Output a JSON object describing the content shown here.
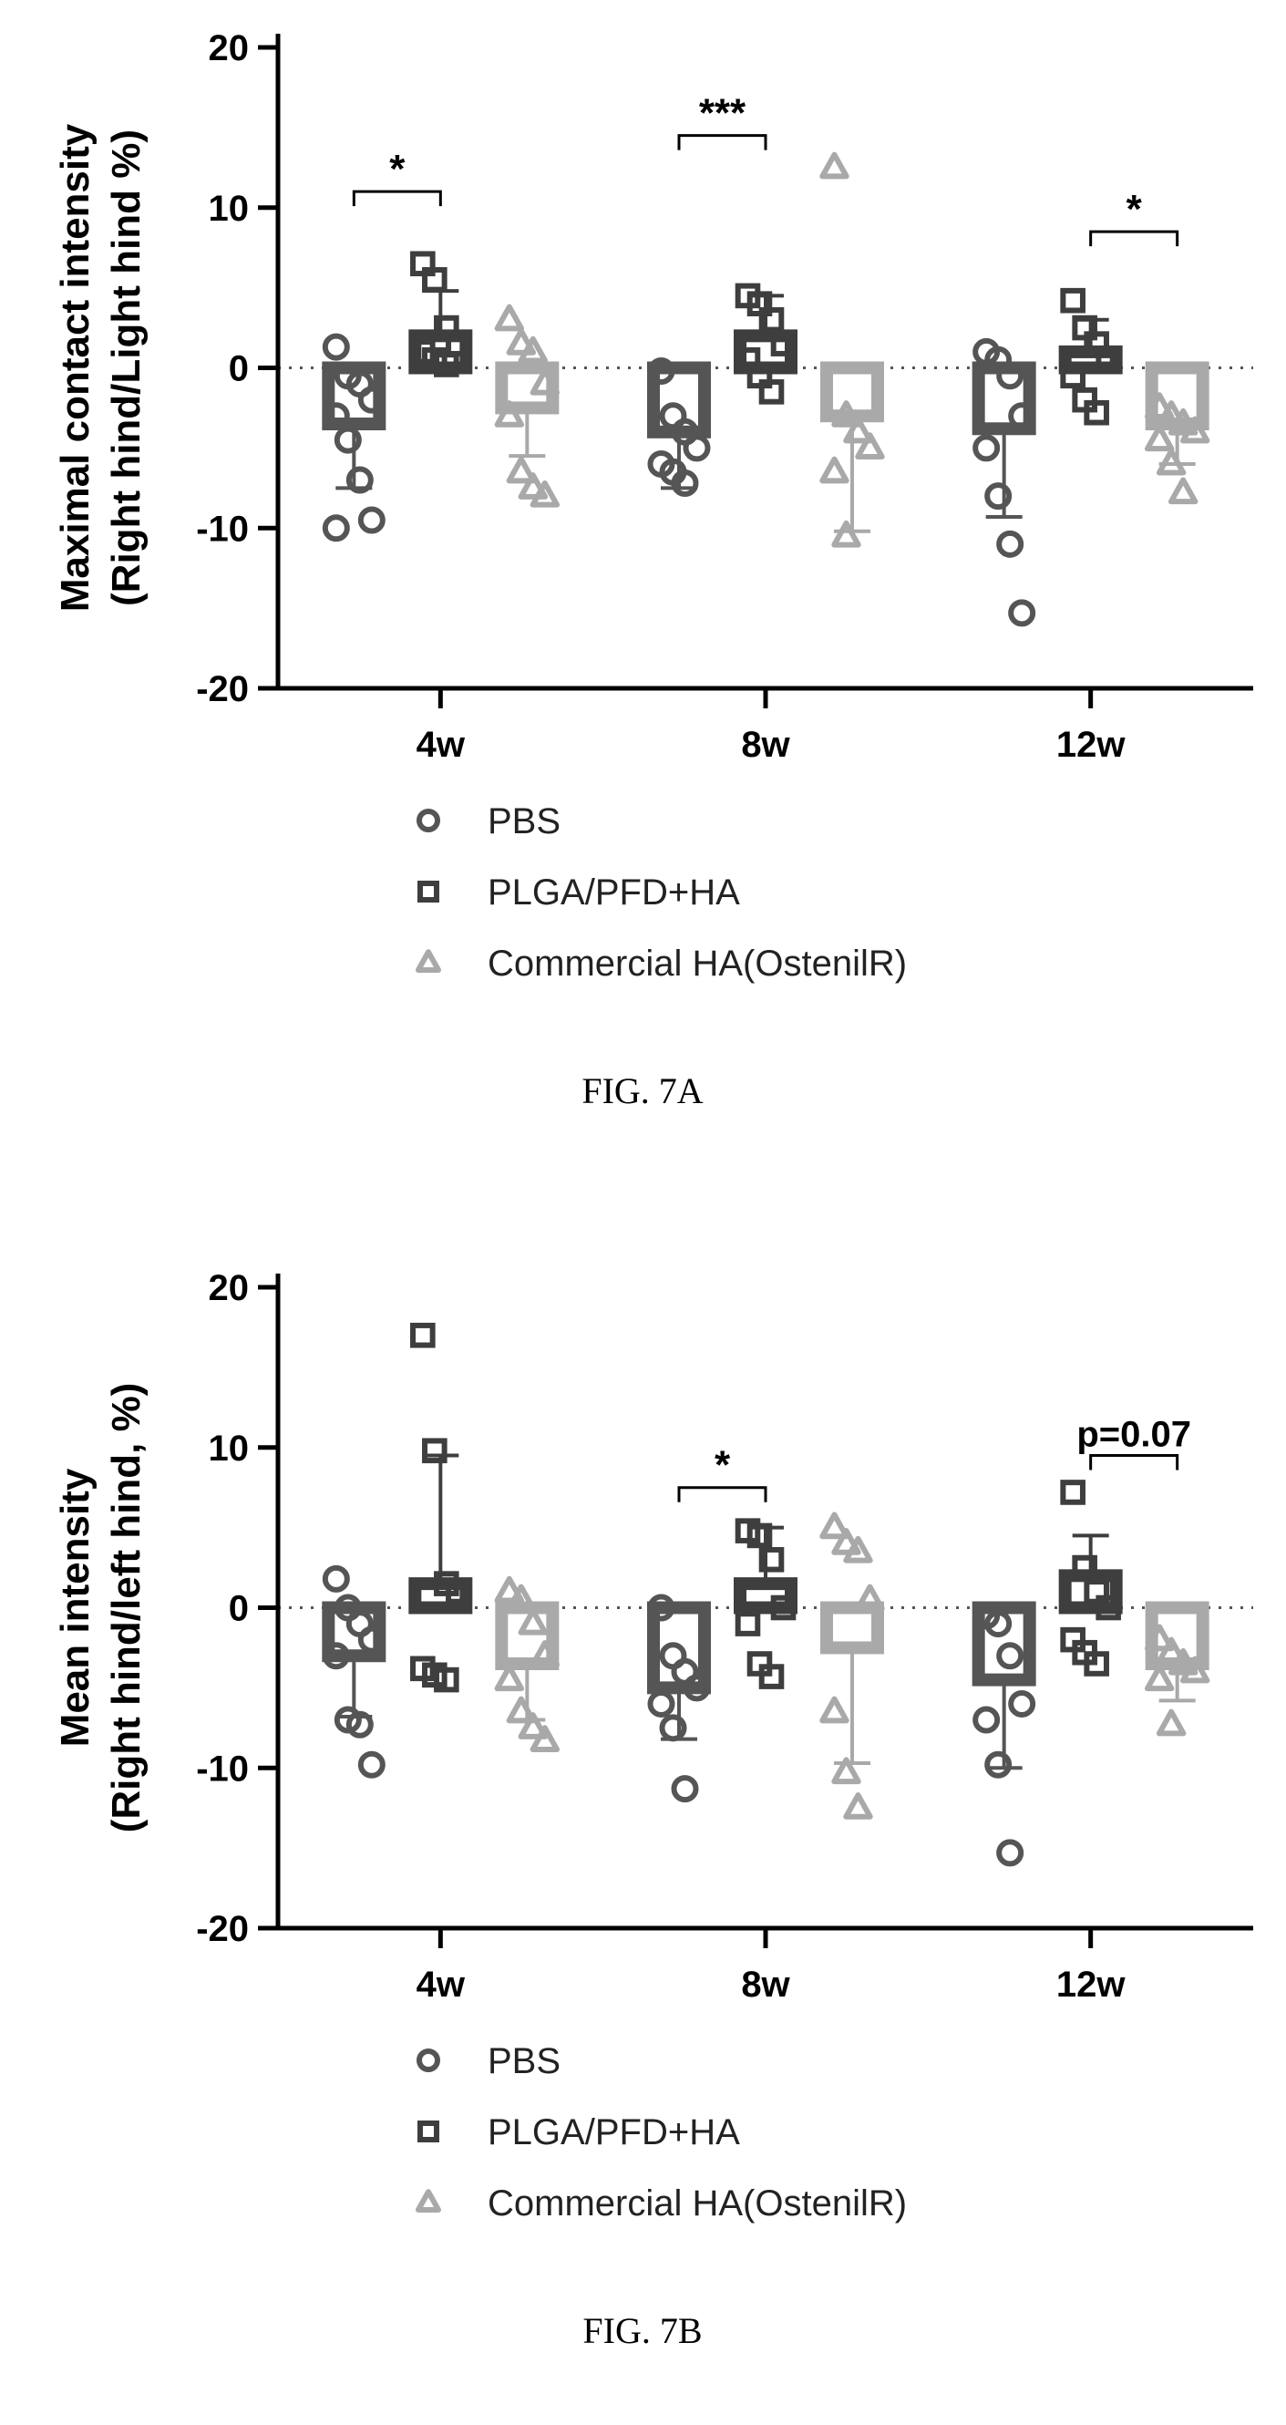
{
  "groups": {
    "names": [
      "PBS",
      "PLGA/PFD+HA",
      "Commercial HA(OstenilR)"
    ],
    "colors": [
      "#555555",
      "#3e3e3e",
      "#a9a9a9"
    ],
    "markers": [
      "circle",
      "square",
      "triangle"
    ]
  },
  "chart_data": [
    {
      "type": "bar",
      "caption": "FIG. 7A",
      "ylabel_line1": "Maximal contact intensity",
      "ylabel_line2": "(Right hind/Light hind %)",
      "categories": [
        "4w",
        "8w",
        "12w"
      ],
      "ylim": [
        -20,
        20
      ],
      "yticks": [
        -20,
        -10,
        0,
        10,
        20
      ],
      "ytick_labels": [
        "-20",
        "-10",
        "0",
        "10",
        "20"
      ],
      "reference_line": 0,
      "legend_position": "bottom",
      "series": [
        {
          "name": "PBS",
          "values": [
            -3.5,
            -4.0,
            -3.8
          ],
          "errors": [
            4.0,
            3.5,
            5.5
          ],
          "points": [
            [
              1.3,
              -0.5,
              -1.0,
              -2.0,
              -3.0,
              -4.5,
              -7.0,
              -9.5,
              -10.0
            ],
            [
              -0.2,
              -3.0,
              -4.0,
              -5.0,
              -6.0,
              -6.5,
              -7.2
            ],
            [
              1.0,
              0.5,
              -0.5,
              -3.0,
              -5.0,
              -8.0,
              -11.0,
              -15.3
            ]
          ]
        },
        {
          "name": "PLGA/PFD+HA",
          "values": [
            2.0,
            2.0,
            1.0
          ],
          "errors": [
            2.8,
            2.5,
            2.0
          ],
          "points": [
            [
              6.5,
              5.5,
              2.5,
              1.5,
              1.0,
              0.5,
              0.2
            ],
            [
              4.5,
              4.0,
              3.0,
              1.5,
              0.5,
              -0.5,
              -1.5
            ],
            [
              4.2,
              2.5,
              1.5,
              0.5,
              -0.5,
              -2.0,
              -2.8
            ]
          ]
        },
        {
          "name": "Commercial HA(OstenilR)",
          "values": [
            -2.5,
            -3.0,
            -3.5
          ],
          "errors": [
            3.0,
            7.2,
            2.5
          ],
          "points": [
            [
              3.0,
              1.5,
              1.0,
              -1.0,
              -3.0,
              -6.5,
              -7.5,
              -8.0
            ],
            [
              12.5,
              -3.0,
              -4.0,
              -5.0,
              -6.5,
              -10.5
            ],
            [
              -2.5,
              -3.0,
              -3.5,
              -4.0,
              -4.5,
              -6.0,
              -7.8
            ]
          ]
        }
      ],
      "annotations": [
        {
          "label": "*",
          "category": "4w",
          "from": 0,
          "to": 1,
          "y": 11
        },
        {
          "label": "***",
          "category": "8w",
          "from": 0,
          "to": 1,
          "y": 14.5
        },
        {
          "label": "*",
          "category": "12w",
          "from": 1,
          "to": 2,
          "y": 8.5
        }
      ]
    },
    {
      "type": "bar",
      "caption": "FIG. 7B",
      "ylabel_line1": "Mean intensity",
      "ylabel_line2": "(Right hind/left hind, %)",
      "categories": [
        "4w",
        "8w",
        "12w"
      ],
      "ylim": [
        -20,
        20
      ],
      "yticks": [
        -20,
        -10,
        0,
        10,
        20
      ],
      "ytick_labels": [
        "-20",
        "-10",
        "0",
        "10",
        "20"
      ],
      "reference_line": 0,
      "legend_position": "bottom",
      "series": [
        {
          "name": "PBS",
          "values": [
            -3.0,
            -5.0,
            -4.5
          ],
          "errors": [
            3.8,
            3.2,
            5.5
          ],
          "points": [
            [
              1.8,
              0.0,
              -1.0,
              -2.0,
              -3.0,
              -7.0,
              -7.3,
              -9.8
            ],
            [
              0.0,
              -3.0,
              -4.0,
              -5.0,
              -6.0,
              -7.5,
              -11.3
            ],
            [
              -0.5,
              -1.0,
              -3.0,
              -6.0,
              -7.0,
              -9.8,
              -15.3
            ]
          ]
        },
        {
          "name": "PLGA/PFD+HA",
          "values": [
            1.5,
            1.5,
            2.0
          ],
          "errors": [
            8.0,
            3.5,
            2.5
          ],
          "points": [
            [
              17.0,
              9.8,
              1.5,
              1.0,
              -3.8,
              -4.2,
              -4.5
            ],
            [
              4.8,
              4.5,
              3.0,
              0.0,
              -1.0,
              -3.5,
              -4.3
            ],
            [
              7.2,
              2.5,
              1.0,
              0.0,
              -2.0,
              -2.8,
              -3.5
            ]
          ]
        },
        {
          "name": "Commercial HA(OstenilR)",
          "values": [
            -3.5,
            -2.5,
            -3.5
          ],
          "errors": [
            3.5,
            7.2,
            2.3
          ],
          "points": [
            [
              1.0,
              0.5,
              -1.0,
              -3.0,
              -4.5,
              -6.5,
              -7.5,
              -8.3
            ],
            [
              5.0,
              4.0,
              3.5,
              0.5,
              -6.5,
              -10.3,
              -12.5
            ],
            [
              -2.0,
              -2.8,
              -3.5,
              -4.0,
              -4.5,
              -7.3
            ]
          ]
        }
      ],
      "annotations": [
        {
          "label": "*",
          "category": "8w",
          "from": 0,
          "to": 1,
          "y": 7.5
        },
        {
          "label": "p=0.07",
          "category": "12w",
          "from": 1,
          "to": 2,
          "y": 9.5
        }
      ]
    }
  ]
}
